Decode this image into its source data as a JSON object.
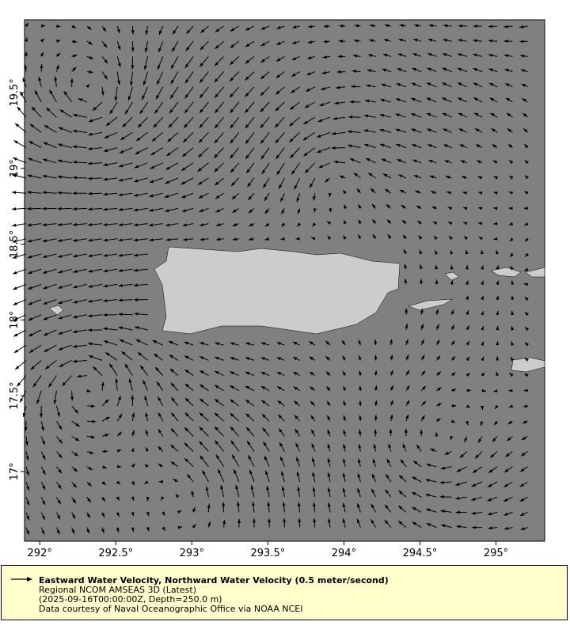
{
  "chart_data": {
    "type": "vector-map",
    "x_ticks": [
      "292°",
      "292.5°",
      "293°",
      "293.5°",
      "294°",
      "294.5°",
      "295°"
    ],
    "x_tick_values": [
      292,
      292.5,
      293,
      293.5,
      294,
      294.5,
      295
    ],
    "y_ticks": [
      "17°",
      "17.5°",
      "18°",
      "18.5°",
      "19°",
      "19.5°"
    ],
    "y_tick_values": [
      17,
      17.5,
      18,
      18.5,
      19,
      19.5
    ],
    "xlim": [
      291.9,
      295.32
    ],
    "ylim": [
      16.54,
      19.98
    ],
    "grid": false,
    "colors": {
      "ocean": "#808080",
      "land": "#cccccc",
      "arrows": "#000000",
      "legend_bg": "#ffffcc"
    }
  },
  "legend": {
    "title": "Eastward Water Velocity, Northward Water Velocity (0.5 meter/second)",
    "line2": "Regional NCOM AMSEAS 3D (Latest)",
    "line3": "(2025-09-16T00:00:00Z, Depth=250.0 m)",
    "line4": "Data courtesy of Naval Oceanographic Office via NOAA NCEI",
    "icon": "arrow-right-icon"
  }
}
